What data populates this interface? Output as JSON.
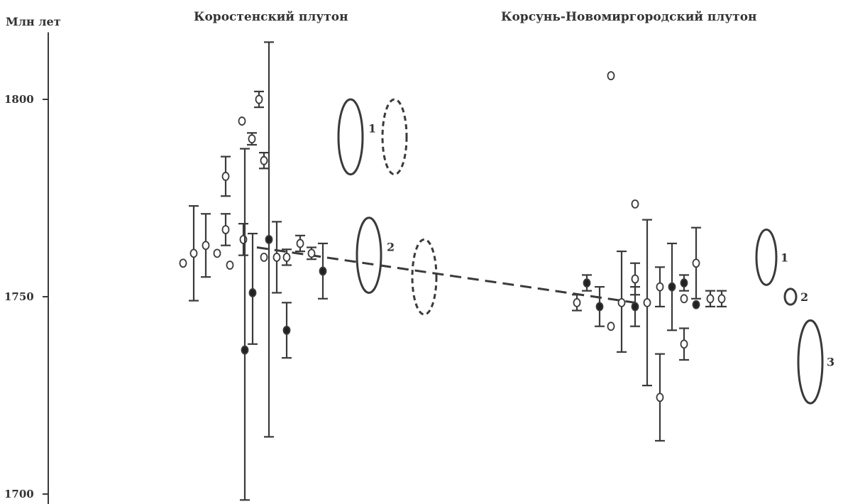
{
  "chart_data": {
    "type": "scatter",
    "title": "",
    "ylabel": "Млн лет",
    "ylim": [
      1700,
      1817
    ],
    "yticks": [
      1700,
      1750,
      1800
    ],
    "grid": false,
    "groups": [
      {
        "label": "Коростенский плутон"
      },
      {
        "label": "Корсунь-Новомиргородский плутон"
      }
    ],
    "symbols": {
      "open": "open circle",
      "filled": "filled circle"
    },
    "points": [
      {
        "x": 258,
        "y": 1758.5,
        "filled": false,
        "err_lo": 0,
        "err_hi": 0
      },
      {
        "x": 273,
        "y": 1761.0,
        "filled": false,
        "err_lo": 12,
        "err_hi": 12
      },
      {
        "x": 290,
        "y": 1763.0,
        "filled": false,
        "err_lo": 8,
        "err_hi": 8
      },
      {
        "x": 306,
        "y": 1761.0,
        "filled": false,
        "err_lo": 0,
        "err_hi": 0
      },
      {
        "x": 318,
        "y": 1780.5,
        "filled": false,
        "err_lo": 5,
        "err_hi": 5
      },
      {
        "x": 318,
        "y": 1767.0,
        "filled": false,
        "err_lo": 4,
        "err_hi": 4
      },
      {
        "x": 324,
        "y": 1758.0,
        "filled": false,
        "err_lo": 0,
        "err_hi": 0
      },
      {
        "x": 341,
        "y": 1794.5,
        "filled": false,
        "err_lo": 0,
        "err_hi": 0
      },
      {
        "x": 343,
        "y": 1764.5,
        "filled": false,
        "err_lo": 4,
        "err_hi": 4
      },
      {
        "x": 345,
        "y": 1736.5,
        "filled": true,
        "err_lo": 38,
        "err_hi": 51
      },
      {
        "x": 355,
        "y": 1790.0,
        "filled": false,
        "err_lo": 1.5,
        "err_hi": 1.5
      },
      {
        "x": 356,
        "y": 1751.0,
        "filled": true,
        "err_lo": 13,
        "err_hi": 15
      },
      {
        "x": 365,
        "y": 1800.0,
        "filled": false,
        "err_lo": 2,
        "err_hi": 2
      },
      {
        "x": 372,
        "y": 1784.5,
        "filled": false,
        "err_lo": 2,
        "err_hi": 2
      },
      {
        "x": 372,
        "y": 1760.0,
        "filled": false,
        "err_lo": 0,
        "err_hi": 0
      },
      {
        "x": 379,
        "y": 1764.5,
        "filled": true,
        "err_lo": 50,
        "err_hi": 50
      },
      {
        "x": 390,
        "y": 1760.0,
        "filled": false,
        "err_lo": 9,
        "err_hi": 9
      },
      {
        "x": 404,
        "y": 1760.0,
        "filled": false,
        "err_lo": 2,
        "err_hi": 2
      },
      {
        "x": 404,
        "y": 1741.5,
        "filled": true,
        "err_lo": 7,
        "err_hi": 7
      },
      {
        "x": 423,
        "y": 1763.5,
        "filled": false,
        "err_lo": 2,
        "err_hi": 2
      },
      {
        "x": 439,
        "y": 1761.0,
        "filled": false,
        "err_lo": 1.5,
        "err_hi": 1.5
      },
      {
        "x": 455,
        "y": 1756.5,
        "filled": true,
        "err_lo": 7,
        "err_hi": 7
      },
      {
        "x": 813,
        "y": 1748.5,
        "filled": false,
        "err_lo": 2,
        "err_hi": 2
      },
      {
        "x": 827,
        "y": 1753.5,
        "filled": true,
        "err_lo": 2,
        "err_hi": 2
      },
      {
        "x": 845,
        "y": 1747.5,
        "filled": true,
        "err_lo": 5,
        "err_hi": 5
      },
      {
        "x": 861,
        "y": 1806.0,
        "filled": false,
        "err_lo": 0,
        "err_hi": 0
      },
      {
        "x": 861,
        "y": 1742.5,
        "filled": false,
        "err_lo": 0,
        "err_hi": 0
      },
      {
        "x": 876,
        "y": 1748.5,
        "filled": false,
        "err_lo": 12.5,
        "err_hi": 13
      },
      {
        "x": 895,
        "y": 1773.5,
        "filled": false,
        "err_lo": 0,
        "err_hi": 0
      },
      {
        "x": 895,
        "y": 1754.5,
        "filled": false,
        "err_lo": 4,
        "err_hi": 4
      },
      {
        "x": 895,
        "y": 1747.5,
        "filled": true,
        "err_lo": 5,
        "err_hi": 5
      },
      {
        "x": 912,
        "y": 1748.5,
        "filled": false,
        "err_lo": 21,
        "err_hi": 21
      },
      {
        "x": 930,
        "y": 1752.5,
        "filled": false,
        "err_lo": 5,
        "err_hi": 5
      },
      {
        "x": 930,
        "y": 1724.5,
        "filled": false,
        "err_lo": 11,
        "err_hi": 11
      },
      {
        "x": 947,
        "y": 1752.5,
        "filled": true,
        "err_lo": 11,
        "err_hi": 11
      },
      {
        "x": 964,
        "y": 1753.5,
        "filled": true,
        "err_lo": 2,
        "err_hi": 2
      },
      {
        "x": 964,
        "y": 1749.5,
        "filled": false,
        "err_lo": 0,
        "err_hi": 0
      },
      {
        "x": 964,
        "y": 1738.0,
        "filled": false,
        "err_lo": 4,
        "err_hi": 4
      },
      {
        "x": 981,
        "y": 1758.5,
        "filled": false,
        "err_lo": 9,
        "err_hi": 9
      },
      {
        "x": 981,
        "y": 1748.0,
        "filled": true,
        "err_lo": 0,
        "err_hi": 0
      },
      {
        "x": 1001,
        "y": 1749.5,
        "filled": false,
        "err_lo": 2,
        "err_hi": 2
      },
      {
        "x": 1017,
        "y": 1749.5,
        "filled": false,
        "err_lo": 2,
        "err_hi": 2
      }
    ],
    "trend_line": {
      "style": "dashed",
      "from": {
        "x": 362,
        "y": 1762.5
      },
      "to": {
        "x": 895,
        "y": 1748.5
      }
    },
    "ellipses": [
      {
        "label": "1",
        "cx": 494,
        "cy": 1790.5,
        "rx": 17,
        "ry_years": 9.5,
        "style": "solid"
      },
      {
        "label": "",
        "cx": 556,
        "cy": 1790.5,
        "rx": 17,
        "ry_years": 9.5,
        "style": "dashed"
      },
      {
        "label": "2",
        "cx": 520,
        "cy": 1760.5,
        "rx": 17,
        "ry_years": 9.5,
        "style": "solid"
      },
      {
        "label": "",
        "cx": 598,
        "cy": 1755.0,
        "rx": 17,
        "ry_years": 9.5,
        "style": "dashed"
      },
      {
        "label": "1",
        "cx": 1080,
        "cy": 1760.0,
        "rx": 14,
        "ry_years": 7.0,
        "style": "solid"
      },
      {
        "label": "2",
        "cx": 1114,
        "cy": 1750.0,
        "rx": 8,
        "ry_years": 2.0,
        "style": "solid"
      },
      {
        "label": "3",
        "cx": 1142,
        "cy": 1733.5,
        "rx": 17,
        "ry_years": 10.5,
        "style": "solid"
      }
    ]
  }
}
